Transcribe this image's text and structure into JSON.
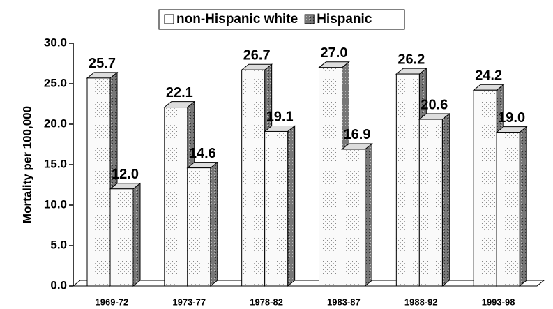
{
  "chart_data": {
    "type": "bar3d",
    "y_label": "Mortality per 100,000",
    "categories": [
      "1969-72",
      "1973-77",
      "1978-82",
      "1983-87",
      "1988-92",
      "1993-98"
    ],
    "series": [
      {
        "name": "non-Hispanic white",
        "color": "#f4f4f4",
        "values": [
          25.7,
          22.1,
          26.7,
          27.0,
          26.2,
          24.2
        ],
        "value_labels": [
          "25.7",
          "22.1",
          "26.7",
          "27.0",
          "26.2",
          "24.2"
        ]
      },
      {
        "name": "Hispanic",
        "color": "#e2e2e2",
        "values": [
          12.0,
          14.6,
          19.1,
          16.9,
          20.6,
          19.0
        ],
        "value_labels": [
          "12.0",
          "14.6",
          "19.1",
          "16.9",
          "20.6",
          "19.0"
        ]
      }
    ],
    "ylim": [
      0,
      30
    ],
    "yticks": [
      {
        "value": 0,
        "label": "0.0"
      },
      {
        "value": 5,
        "label": "5.0"
      },
      {
        "value": 10,
        "label": "10.0"
      },
      {
        "value": 15,
        "label": "15.0"
      },
      {
        "value": 20,
        "label": "20.0"
      },
      {
        "value": 25,
        "label": "25.0"
      },
      {
        "value": 30,
        "label": "30.0"
      }
    ],
    "grid": false,
    "legend": "top"
  }
}
